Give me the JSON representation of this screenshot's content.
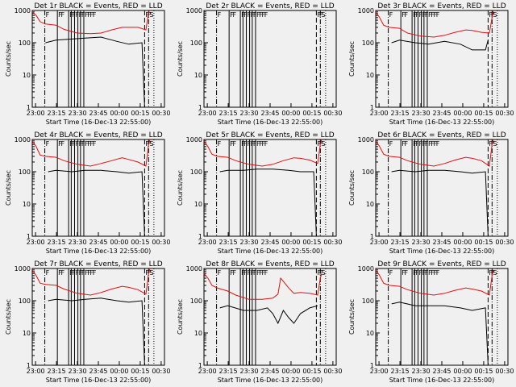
{
  "figure": {
    "background": "#f0f0f0",
    "events_color": "#000000",
    "lld_color": "#e01010"
  },
  "chart_data": [
    {
      "type": "line",
      "title": "Det 1r BLACK = Events, RED = LLD",
      "xlabel": "Start Time (16-Dec-13 22:55:00)",
      "ylabel": "Counts/sec",
      "xlim": [
        0,
        100
      ],
      "ylim": [
        1,
        1000
      ],
      "yscale": "log",
      "x_ticks": [
        "23:00",
        "23:15",
        "23:30",
        "23:45",
        "00:00",
        "00:15",
        "00:30"
      ],
      "y_ticks": [
        "1",
        "10",
        "100",
        "1000"
      ],
      "annotations": [
        "F",
        "F",
        "F",
        "F",
        "F",
        "F",
        "F",
        "F",
        "F",
        "F",
        "F",
        "F",
        "F",
        "F",
        "S"
      ],
      "series": [
        {
          "name": "Events",
          "x": [
            10,
            18,
            30,
            40,
            52,
            64,
            73,
            83,
            85,
            88
          ],
          "y": [
            100,
            120,
            130,
            140,
            150,
            110,
            90,
            100,
            1,
            1
          ]
        },
        {
          "name": "LLD",
          "x": [
            0,
            3,
            6,
            10,
            18,
            24,
            34,
            44,
            52,
            60,
            68,
            73,
            80,
            86,
            88,
            89
          ],
          "y": [
            900,
            700,
            450,
            380,
            350,
            260,
            200,
            190,
            200,
            250,
            300,
            300,
            300,
            250,
            900,
            1000
          ]
        }
      ]
    },
    {
      "type": "line",
      "title": "Det 2r BLACK = Events, RED = LLD",
      "xlabel": "Start Time (16-Dec-13 22:55:00)",
      "ylabel": "Counts/sec",
      "xlim": [
        0,
        100
      ],
      "ylim": [
        1,
        1000
      ],
      "yscale": "log",
      "x_ticks": [
        "23:00",
        "23:15",
        "23:30",
        "23:45",
        "00:00",
        "00:15",
        "00:30"
      ],
      "y_ticks": [
        "1",
        "10",
        "100",
        "1000"
      ],
      "annotations": [
        "F",
        "F",
        "F",
        "F",
        "F",
        "F",
        "F",
        "F",
        "F",
        "F",
        "F",
        "F",
        "F",
        "F",
        "S"
      ],
      "series": []
    },
    {
      "type": "line",
      "title": "Det 3r BLACK = Events, RED = LLD",
      "xlabel": "Start Time (16-Dec-13 22:55:00)",
      "ylabel": "Counts/sec",
      "xlim": [
        0,
        100
      ],
      "ylim": [
        1,
        1000
      ],
      "yscale": "log",
      "x_ticks": [
        "23:00",
        "23:15",
        "23:30",
        "23:45",
        "00:00",
        "00:15",
        "00:30"
      ],
      "y_ticks": [
        "1",
        "10",
        "100",
        "1000"
      ],
      "annotations": [
        "F",
        "F",
        "F",
        "F",
        "F",
        "F",
        "F",
        "F",
        "F",
        "F",
        "F",
        "F",
        "F",
        "F",
        "S"
      ],
      "series": [
        {
          "name": "Events",
          "x": [
            12,
            18,
            30,
            40,
            52,
            64,
            73,
            83,
            85
          ],
          "y": [
            100,
            120,
            100,
            90,
            110,
            90,
            60,
            60,
            120
          ]
        },
        {
          "name": "LLD",
          "x": [
            0,
            3,
            6,
            10,
            18,
            24,
            34,
            44,
            52,
            60,
            68,
            73,
            80,
            86,
            88,
            89
          ],
          "y": [
            900,
            600,
            350,
            300,
            280,
            200,
            160,
            150,
            170,
            210,
            250,
            240,
            210,
            200,
            600,
            1000
          ]
        }
      ]
    },
    {
      "type": "line",
      "title": "Det 4r BLACK = Events, RED = LLD",
      "xlabel": "Start Time (16-Dec-13 22:55:00)",
      "ylabel": "Counts/sec",
      "xlim": [
        0,
        100
      ],
      "ylim": [
        1,
        1000
      ],
      "yscale": "log",
      "x_ticks": [
        "23:00",
        "23:15",
        "23:30",
        "23:45",
        "00:00",
        "00:15",
        "00:30"
      ],
      "y_ticks": [
        "1",
        "10",
        "100",
        "1000"
      ],
      "annotations": [
        "F",
        "F",
        "F",
        "F",
        "F",
        "F",
        "F",
        "F",
        "F",
        "F",
        "F",
        "F",
        "F",
        "F",
        "S"
      ],
      "series": [
        {
          "name": "Events",
          "x": [
            12,
            18,
            30,
            40,
            52,
            64,
            73,
            83,
            85,
            88
          ],
          "y": [
            100,
            110,
            100,
            110,
            110,
            100,
            90,
            100,
            1,
            1
          ]
        },
        {
          "name": "LLD",
          "x": [
            0,
            3,
            6,
            10,
            18,
            24,
            34,
            44,
            52,
            60,
            68,
            73,
            80,
            86,
            88,
            89
          ],
          "y": [
            900,
            600,
            330,
            300,
            280,
            220,
            170,
            150,
            180,
            220,
            270,
            240,
            200,
            150,
            700,
            1000
          ]
        }
      ]
    },
    {
      "type": "line",
      "title": "Det 5r BLACK = Events, RED = LLD",
      "xlabel": "Start Time (16-Dec-13 22:55:00)",
      "ylabel": "Counts/sec",
      "xlim": [
        0,
        100
      ],
      "ylim": [
        1,
        1000
      ],
      "yscale": "log",
      "x_ticks": [
        "23:00",
        "23:15",
        "23:30",
        "23:45",
        "00:00",
        "00:15",
        "00:30"
      ],
      "y_ticks": [
        "1",
        "10",
        "100",
        "1000"
      ],
      "annotations": [
        "F",
        "F",
        "F",
        "F",
        "F",
        "F",
        "F",
        "F",
        "F",
        "F",
        "F",
        "F",
        "F",
        "F",
        "S"
      ],
      "series": [
        {
          "name": "Events",
          "x": [
            12,
            18,
            30,
            40,
            52,
            64,
            73,
            83,
            85,
            88
          ],
          "y": [
            100,
            110,
            110,
            120,
            120,
            110,
            100,
            100,
            1,
            1
          ]
        },
        {
          "name": "LLD",
          "x": [
            0,
            3,
            6,
            10,
            18,
            24,
            34,
            44,
            52,
            60,
            68,
            73,
            80,
            86,
            88,
            89
          ],
          "y": [
            900,
            600,
            350,
            300,
            280,
            220,
            170,
            150,
            170,
            220,
            270,
            260,
            230,
            180,
            700,
            1000
          ]
        }
      ]
    },
    {
      "type": "line",
      "title": "Det 6r BLACK = Events, RED = LLD",
      "xlabel": "Start Time (16-Dec-13 22:55:00)",
      "ylabel": "Counts/sec",
      "xlim": [
        0,
        100
      ],
      "ylim": [
        1,
        1000
      ],
      "yscale": "log",
      "x_ticks": [
        "23:00",
        "23:15",
        "23:30",
        "23:45",
        "00:00",
        "00:15",
        "00:30"
      ],
      "y_ticks": [
        "1",
        "10",
        "100",
        "1000"
      ],
      "annotations": [
        "F",
        "F",
        "F",
        "F",
        "F",
        "F",
        "F",
        "F",
        "F",
        "F",
        "F",
        "F",
        "F",
        "F",
        "S"
      ],
      "series": [
        {
          "name": "Events",
          "x": [
            12,
            18,
            30,
            40,
            52,
            64,
            73,
            83,
            85,
            88
          ],
          "y": [
            100,
            110,
            100,
            110,
            110,
            100,
            90,
            100,
            1,
            1
          ]
        },
        {
          "name": "LLD",
          "x": [
            0,
            3,
            6,
            10,
            18,
            24,
            34,
            44,
            52,
            60,
            68,
            73,
            80,
            86,
            88,
            89
          ],
          "y": [
            900,
            600,
            350,
            300,
            280,
            220,
            170,
            150,
            180,
            230,
            280,
            260,
            220,
            150,
            700,
            1000
          ]
        }
      ]
    },
    {
      "type": "line",
      "title": "Det 7r BLACK = Events, RED = LLD",
      "xlabel": "Start Time (16-Dec-13 22:55:00)",
      "ylabel": "Counts/sec",
      "xlim": [
        0,
        100
      ],
      "ylim": [
        1,
        1000
      ],
      "yscale": "log",
      "x_ticks": [
        "23:00",
        "23:15",
        "23:30",
        "23:45",
        "00:00",
        "00:15",
        "00:30"
      ],
      "y_ticks": [
        "1",
        "10",
        "100",
        "1000"
      ],
      "annotations": [
        "F",
        "F",
        "F",
        "F",
        "F",
        "F",
        "F",
        "F",
        "F",
        "F",
        "F",
        "F",
        "F",
        "F",
        "S"
      ],
      "series": [
        {
          "name": "Events",
          "x": [
            12,
            18,
            30,
            40,
            52,
            64,
            73,
            83,
            85,
            88
          ],
          "y": [
            100,
            110,
            100,
            110,
            120,
            100,
            90,
            100,
            1,
            1
          ]
        },
        {
          "name": "LLD",
          "x": [
            0,
            3,
            6,
            10,
            18,
            24,
            34,
            44,
            52,
            60,
            68,
            73,
            80,
            86,
            88,
            89
          ],
          "y": [
            900,
            600,
            350,
            320,
            300,
            230,
            170,
            150,
            180,
            230,
            280,
            260,
            220,
            160,
            700,
            1000
          ]
        }
      ]
    },
    {
      "type": "line",
      "title": "Det 8r BLACK = Events, RED = LLD",
      "xlabel": "Start Time (16-Dec-13 22:55:00)",
      "ylabel": "Counts/sec",
      "xlim": [
        0,
        100
      ],
      "ylim": [
        1,
        1000
      ],
      "yscale": "log",
      "x_ticks": [
        "23:00",
        "23:15",
        "23:30",
        "23:45",
        "00:00",
        "00:15",
        "00:30"
      ],
      "y_ticks": [
        "1",
        "10",
        "100",
        "1000"
      ],
      "annotations": [
        "F",
        "F",
        "F",
        "F",
        "F",
        "F",
        "F",
        "F",
        "F",
        "F",
        "F",
        "F",
        "F",
        "F",
        "S"
      ],
      "series": [
        {
          "name": "Events",
          "x": [
            12,
            18,
            30,
            40,
            48,
            52,
            56,
            60,
            64,
            68,
            73,
            80,
            86
          ],
          "y": [
            60,
            70,
            50,
            50,
            60,
            40,
            20,
            50,
            30,
            20,
            40,
            60,
            70
          ]
        },
        {
          "name": "LLD",
          "x": [
            0,
            3,
            6,
            10,
            18,
            24,
            34,
            44,
            52,
            56,
            58,
            60,
            64,
            68,
            73,
            80,
            86,
            88,
            89
          ],
          "y": [
            700,
            500,
            300,
            250,
            200,
            150,
            110,
            110,
            120,
            160,
            500,
            400,
            250,
            170,
            180,
            170,
            150,
            500,
            700
          ]
        }
      ]
    },
    {
      "type": "line",
      "title": "Det 9r BLACK = Events, RED = LLD",
      "xlabel": "Start Time (16-Dec-13 22:55:00)",
      "ylabel": "Counts/sec",
      "xlim": [
        0,
        100
      ],
      "ylim": [
        1,
        1000
      ],
      "yscale": "log",
      "x_ticks": [
        "23:00",
        "23:15",
        "23:30",
        "23:45",
        "00:00",
        "00:15",
        "00:30"
      ],
      "y_ticks": [
        "1",
        "10",
        "100",
        "1000"
      ],
      "annotations": [
        "F",
        "F",
        "F",
        "F",
        "F",
        "F",
        "F",
        "F",
        "F",
        "F",
        "F",
        "F",
        "F",
        "F",
        "S"
      ],
      "series": [
        {
          "name": "Events",
          "x": [
            12,
            18,
            30,
            40,
            52,
            64,
            73,
            83,
            85,
            88
          ],
          "y": [
            80,
            90,
            70,
            70,
            70,
            60,
            50,
            60,
            1,
            1
          ]
        },
        {
          "name": "LLD",
          "x": [
            0,
            3,
            6,
            10,
            18,
            24,
            34,
            44,
            52,
            60,
            68,
            73,
            80,
            86,
            88,
            89
          ],
          "y": [
            900,
            600,
            350,
            300,
            280,
            220,
            170,
            150,
            170,
            210,
            250,
            230,
            200,
            150,
            600,
            900
          ]
        }
      ]
    }
  ]
}
